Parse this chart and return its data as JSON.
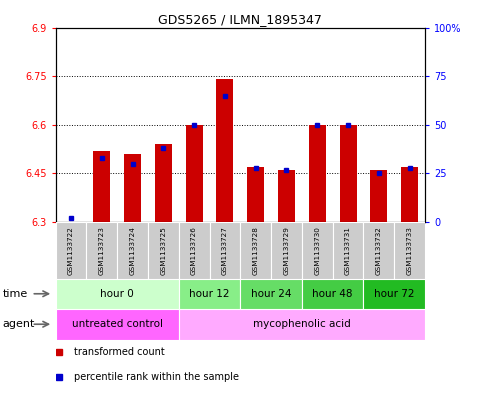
{
  "title": "GDS5265 / ILMN_1895347",
  "samples": [
    "GSM1133722",
    "GSM1133723",
    "GSM1133724",
    "GSM1133725",
    "GSM1133726",
    "GSM1133727",
    "GSM1133728",
    "GSM1133729",
    "GSM1133730",
    "GSM1133731",
    "GSM1133732",
    "GSM1133733"
  ],
  "transformed_count": [
    6.3,
    6.52,
    6.51,
    6.54,
    6.6,
    6.74,
    6.47,
    6.46,
    6.6,
    6.6,
    6.46,
    6.47
  ],
  "percentile_rank": [
    2,
    33,
    30,
    38,
    50,
    65,
    28,
    27,
    50,
    50,
    25,
    28
  ],
  "ylim_left": [
    6.3,
    6.9
  ],
  "ylim_right": [
    0,
    100
  ],
  "yticks_left": [
    6.3,
    6.45,
    6.6,
    6.75,
    6.9
  ],
  "yticks_right": [
    0,
    25,
    50,
    75,
    100
  ],
  "ytick_labels_left": [
    "6.3",
    "6.45",
    "6.6",
    "6.75",
    "6.9"
  ],
  "ytick_labels_right": [
    "0",
    "25",
    "50",
    "75",
    "100%"
  ],
  "bar_color": "#cc0000",
  "dot_color": "#0000cc",
  "baseline": 6.3,
  "grid_lines": [
    6.45,
    6.6,
    6.75
  ],
  "time_groups": [
    {
      "label": "hour 0",
      "start": 0,
      "end": 4,
      "color": "#ccffcc"
    },
    {
      "label": "hour 12",
      "start": 4,
      "end": 6,
      "color": "#88ee88"
    },
    {
      "label": "hour 24",
      "start": 6,
      "end": 8,
      "color": "#66dd66"
    },
    {
      "label": "hour 48",
      "start": 8,
      "end": 10,
      "color": "#44cc44"
    },
    {
      "label": "hour 72",
      "start": 10,
      "end": 12,
      "color": "#22bb22"
    }
  ],
  "agent_groups": [
    {
      "label": "untreated control",
      "start": 0,
      "end": 4,
      "color": "#ff66ff"
    },
    {
      "label": "mycophenolic acid",
      "start": 4,
      "end": 12,
      "color": "#ffaaff"
    }
  ],
  "legend_items": [
    {
      "label": "transformed count",
      "color": "#cc0000"
    },
    {
      "label": "percentile rank within the sample",
      "color": "#0000cc"
    }
  ],
  "row_label_time": "time",
  "row_label_agent": "agent",
  "bg_color": "#ffffff",
  "plot_bg_color": "#ffffff",
  "sample_bg_color": "#cccccc"
}
